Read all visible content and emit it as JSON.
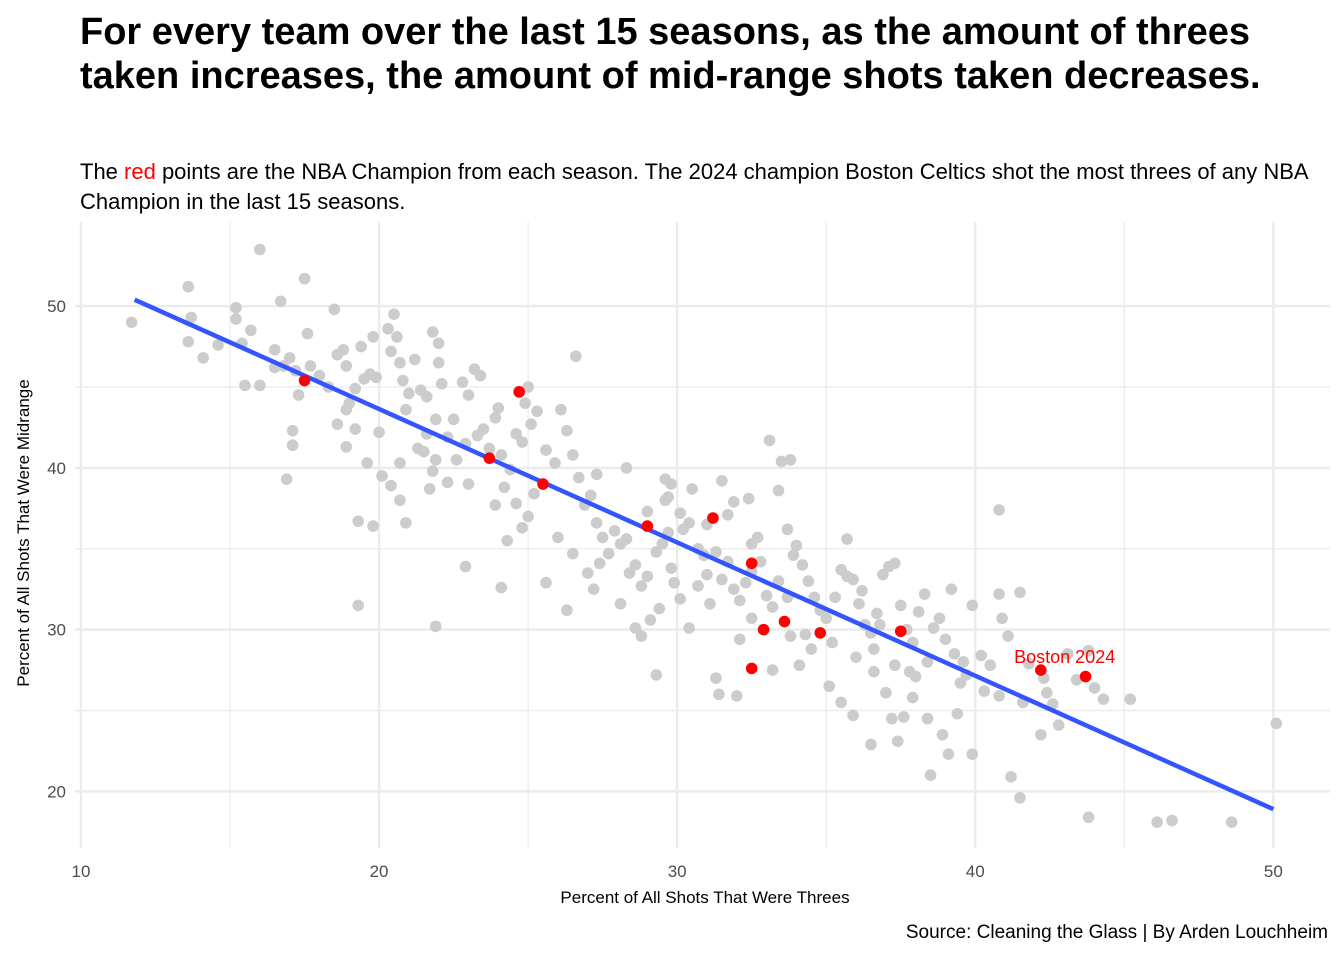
{
  "title": "For every team over the last 15 seasons, as the amount of threes taken increases, the amount of mid-range shots taken decreases.",
  "subtitle": {
    "before": "The ",
    "highlight": "red",
    "after": " points are the NBA Champion from each season. The 2024 champion Boston Celtics shot the most threes of any NBA Champion in the last 15 seasons."
  },
  "caption": "Source: Cleaning the Glass | By Arden Louchheim",
  "chart_data": {
    "type": "scatter",
    "title": "For every team over the last 15 seasons, as the amount of threes taken increases, the amount of mid-range shots taken decreases.",
    "xlabel": "Percent of All Shots That Were Threes",
    "ylabel": "Percent of All Shots That Were Midrange",
    "xlim": [
      9.8,
      51.9
    ],
    "ylim": [
      16.5,
      55.2
    ],
    "xticks": [
      10,
      20,
      30,
      40,
      50
    ],
    "yticks": [
      20,
      30,
      40,
      50
    ],
    "grid": true,
    "colors": {
      "teams": "#cccccc",
      "champions": "#ff0000",
      "trend": "#3355ff",
      "grid": "#ebebeb"
    },
    "trend_line": {
      "x": [
        11.8,
        50.0
      ],
      "y": [
        50.4,
        18.9
      ]
    },
    "annotation": {
      "label": "Boston 2024",
      "x": 43.0,
      "y": 28.3,
      "color": "#ff0000"
    },
    "series": [
      {
        "name": "teams",
        "color": "#cccccc",
        "points": [
          [
            11.7,
            49.0
          ],
          [
            13.6,
            51.2
          ],
          [
            13.6,
            47.8
          ],
          [
            13.7,
            49.3
          ],
          [
            14.1,
            46.8
          ],
          [
            14.6,
            47.6
          ],
          [
            15.2,
            49.9
          ],
          [
            15.2,
            49.2
          ],
          [
            15.4,
            47.7
          ],
          [
            15.5,
            45.1
          ],
          [
            15.7,
            48.5
          ],
          [
            16.0,
            53.5
          ],
          [
            16.0,
            45.1
          ],
          [
            16.5,
            47.3
          ],
          [
            16.7,
            50.3
          ],
          [
            16.8,
            46.3
          ],
          [
            17.0,
            46.8
          ],
          [
            17.2,
            46.0
          ],
          [
            17.5,
            51.7
          ],
          [
            17.6,
            48.3
          ],
          [
            17.7,
            46.3
          ],
          [
            17.1,
            42.3
          ],
          [
            17.1,
            41.4
          ],
          [
            16.9,
            39.3
          ],
          [
            18.0,
            45.7
          ],
          [
            18.3,
            45.0
          ],
          [
            18.5,
            49.8
          ],
          [
            18.6,
            47.0
          ],
          [
            18.8,
            47.3
          ],
          [
            18.9,
            46.3
          ],
          [
            19.0,
            44.0
          ],
          [
            18.6,
            42.7
          ],
          [
            18.9,
            41.3
          ],
          [
            19.2,
            44.9
          ],
          [
            19.4,
            47.5
          ],
          [
            19.5,
            45.5
          ],
          [
            19.7,
            45.8
          ],
          [
            19.8,
            48.1
          ],
          [
            19.9,
            45.6
          ],
          [
            20.0,
            42.2
          ],
          [
            19.6,
            40.3
          ],
          [
            20.3,
            48.6
          ],
          [
            20.4,
            47.2
          ],
          [
            20.5,
            49.5
          ],
          [
            20.6,
            48.1
          ],
          [
            20.7,
            46.5
          ],
          [
            20.8,
            45.4
          ],
          [
            20.9,
            43.6
          ],
          [
            21.0,
            44.6
          ],
          [
            21.2,
            46.7
          ],
          [
            21.4,
            44.8
          ],
          [
            21.6,
            44.4
          ],
          [
            21.8,
            48.4
          ],
          [
            22.0,
            47.7
          ],
          [
            22.0,
            46.5
          ],
          [
            22.1,
            45.2
          ],
          [
            21.9,
            43.0
          ],
          [
            21.6,
            42.1
          ],
          [
            21.5,
            41.0
          ],
          [
            21.9,
            40.5
          ],
          [
            21.8,
            39.8
          ],
          [
            21.7,
            38.7
          ],
          [
            20.7,
            38.0
          ],
          [
            20.4,
            38.9
          ],
          [
            20.9,
            36.6
          ],
          [
            19.8,
            36.4
          ],
          [
            19.3,
            36.7
          ],
          [
            19.3,
            31.5
          ],
          [
            21.9,
            30.2
          ],
          [
            22.5,
            43.0
          ],
          [
            22.6,
            40.5
          ],
          [
            22.8,
            45.3
          ],
          [
            23.0,
            44.5
          ],
          [
            23.2,
            46.1
          ],
          [
            23.4,
            45.7
          ],
          [
            23.5,
            42.4
          ],
          [
            23.7,
            41.2
          ],
          [
            23.9,
            43.1
          ],
          [
            24.1,
            40.8
          ],
          [
            24.4,
            39.9
          ],
          [
            24.6,
            42.1
          ],
          [
            24.8,
            41.6
          ],
          [
            24.9,
            44.0
          ],
          [
            25.1,
            42.7
          ],
          [
            25.3,
            43.5
          ],
          [
            25.0,
            45.0
          ],
          [
            24.2,
            38.8
          ],
          [
            24.6,
            37.8
          ],
          [
            25.0,
            37.0
          ],
          [
            25.2,
            38.4
          ],
          [
            25.6,
            41.1
          ],
          [
            25.9,
            40.3
          ],
          [
            26.1,
            43.6
          ],
          [
            26.3,
            42.3
          ],
          [
            26.5,
            40.8
          ],
          [
            26.7,
            39.4
          ],
          [
            26.6,
            46.9
          ],
          [
            26.9,
            37.7
          ],
          [
            27.1,
            38.3
          ],
          [
            27.3,
            36.6
          ],
          [
            27.5,
            35.7
          ],
          [
            27.7,
            34.7
          ],
          [
            27.4,
            34.1
          ],
          [
            27.9,
            36.1
          ],
          [
            28.1,
            35.3
          ],
          [
            28.3,
            35.6
          ],
          [
            28.4,
            33.5
          ],
          [
            28.6,
            34.0
          ],
          [
            28.8,
            32.7
          ],
          [
            29.0,
            33.3
          ],
          [
            29.3,
            34.8
          ],
          [
            29.5,
            35.3
          ],
          [
            29.7,
            36.0
          ],
          [
            29.8,
            33.8
          ],
          [
            29.9,
            32.9
          ],
          [
            30.1,
            31.9
          ],
          [
            29.6,
            39.3
          ],
          [
            29.8,
            39.0
          ],
          [
            29.6,
            38.0
          ],
          [
            29.0,
            37.3
          ],
          [
            30.1,
            37.2
          ],
          [
            30.2,
            36.2
          ],
          [
            30.4,
            36.6
          ],
          [
            30.7,
            35.0
          ],
          [
            30.9,
            34.6
          ],
          [
            31.0,
            33.4
          ],
          [
            31.3,
            34.8
          ],
          [
            31.5,
            33.1
          ],
          [
            31.7,
            34.2
          ],
          [
            31.9,
            32.5
          ],
          [
            32.1,
            31.8
          ],
          [
            32.3,
            32.9
          ],
          [
            32.5,
            35.3
          ],
          [
            32.7,
            35.7
          ],
          [
            32.8,
            34.2
          ],
          [
            33.0,
            32.1
          ],
          [
            33.2,
            31.4
          ],
          [
            33.4,
            33.0
          ],
          [
            33.1,
            41.7
          ],
          [
            33.5,
            40.4
          ],
          [
            33.8,
            40.5
          ],
          [
            33.4,
            38.6
          ],
          [
            33.7,
            36.2
          ],
          [
            34.0,
            35.2
          ],
          [
            34.2,
            34.0
          ],
          [
            34.4,
            33.0
          ],
          [
            34.6,
            32.0
          ],
          [
            34.8,
            31.2
          ],
          [
            35.0,
            30.7
          ],
          [
            35.3,
            32.0
          ],
          [
            35.5,
            33.7
          ],
          [
            35.7,
            35.6
          ],
          [
            35.9,
            33.1
          ],
          [
            36.1,
            31.6
          ],
          [
            36.3,
            30.3
          ],
          [
            36.5,
            29.8
          ],
          [
            36.7,
            31.0
          ],
          [
            36.9,
            33.4
          ],
          [
            37.1,
            33.9
          ],
          [
            37.3,
            34.1
          ],
          [
            37.5,
            31.5
          ],
          [
            37.7,
            30.0
          ],
          [
            37.9,
            29.2
          ],
          [
            38.1,
            31.1
          ],
          [
            38.3,
            32.2
          ],
          [
            38.6,
            30.1
          ],
          [
            38.8,
            30.7
          ],
          [
            39.0,
            29.4
          ],
          [
            39.3,
            28.5
          ],
          [
            39.6,
            28.0
          ],
          [
            39.2,
            32.5
          ],
          [
            39.9,
            31.5
          ],
          [
            40.2,
            28.4
          ],
          [
            40.5,
            27.8
          ],
          [
            40.8,
            32.2
          ],
          [
            40.9,
            30.7
          ],
          [
            41.1,
            29.6
          ],
          [
            40.8,
            37.4
          ],
          [
            41.5,
            32.3
          ],
          [
            42.3,
            27.0
          ],
          [
            42.8,
            24.1
          ],
          [
            43.1,
            28.5
          ],
          [
            43.8,
            28.7
          ],
          [
            44.0,
            26.4
          ],
          [
            44.3,
            25.7
          ],
          [
            45.2,
            25.7
          ],
          [
            41.2,
            20.9
          ],
          [
            41.5,
            19.6
          ],
          [
            42.2,
            23.5
          ],
          [
            43.8,
            18.4
          ],
          [
            46.1,
            18.1
          ],
          [
            46.6,
            18.2
          ],
          [
            48.6,
            18.1
          ],
          [
            50.1,
            24.2
          ],
          [
            31.4,
            26.0
          ],
          [
            32.0,
            25.9
          ],
          [
            31.3,
            27.0
          ],
          [
            32.1,
            29.4
          ],
          [
            33.2,
            27.5
          ],
          [
            33.8,
            29.6
          ],
          [
            34.1,
            27.8
          ],
          [
            34.5,
            28.8
          ],
          [
            35.1,
            26.5
          ],
          [
            35.5,
            25.5
          ],
          [
            35.9,
            24.7
          ],
          [
            36.6,
            27.4
          ],
          [
            37.0,
            26.1
          ],
          [
            37.2,
            24.5
          ],
          [
            37.6,
            24.6
          ],
          [
            37.9,
            25.8
          ],
          [
            38.4,
            24.5
          ],
          [
            38.9,
            23.5
          ],
          [
            39.1,
            22.3
          ],
          [
            39.4,
            24.8
          ],
          [
            39.9,
            22.3
          ],
          [
            38.5,
            21.0
          ],
          [
            36.5,
            22.9
          ],
          [
            37.4,
            23.1
          ],
          [
            31.5,
            39.2
          ],
          [
            31.9,
            37.9
          ],
          [
            32.4,
            38.1
          ],
          [
            31.0,
            36.5
          ],
          [
            30.4,
            30.1
          ],
          [
            29.4,
            31.3
          ],
          [
            29.1,
            30.6
          ],
          [
            28.8,
            29.6
          ],
          [
            28.1,
            31.6
          ],
          [
            27.2,
            32.5
          ],
          [
            26.3,
            31.2
          ],
          [
            25.6,
            32.9
          ],
          [
            24.1,
            32.6
          ],
          [
            22.9,
            33.9
          ],
          [
            26.0,
            35.7
          ],
          [
            26.5,
            34.7
          ],
          [
            27.0,
            33.5
          ],
          [
            24.3,
            35.5
          ],
          [
            24.8,
            36.3
          ],
          [
            23.9,
            37.7
          ],
          [
            23.0,
            39.0
          ],
          [
            22.3,
            39.1
          ],
          [
            28.6,
            30.1
          ],
          [
            29.3,
            27.2
          ],
          [
            30.7,
            32.7
          ],
          [
            31.1,
            31.6
          ],
          [
            32.5,
            30.7
          ],
          [
            33.7,
            32.0
          ],
          [
            34.3,
            29.7
          ],
          [
            35.2,
            29.2
          ],
          [
            36.0,
            28.3
          ],
          [
            36.6,
            28.8
          ],
          [
            37.3,
            27.8
          ],
          [
            37.8,
            27.4
          ],
          [
            38.4,
            28.0
          ],
          [
            39.7,
            27.2
          ],
          [
            40.3,
            26.2
          ],
          [
            40.8,
            25.9
          ],
          [
            41.6,
            25.5
          ],
          [
            42.4,
            26.1
          ],
          [
            43.4,
            26.9
          ],
          [
            21.3,
            41.2
          ],
          [
            20.7,
            40.3
          ],
          [
            20.1,
            39.5
          ],
          [
            19.2,
            42.4
          ],
          [
            18.9,
            43.6
          ],
          [
            17.3,
            44.5
          ],
          [
            16.5,
            46.2
          ],
          [
            22.3,
            41.9
          ],
          [
            23.3,
            42.0
          ],
          [
            24.0,
            43.7
          ],
          [
            22.9,
            41.5
          ],
          [
            27.3,
            39.6
          ],
          [
            28.3,
            40.0
          ],
          [
            29.7,
            38.2
          ],
          [
            30.5,
            38.7
          ],
          [
            31.7,
            37.1
          ],
          [
            32.5,
            33.6
          ],
          [
            33.9,
            34.6
          ],
          [
            35.7,
            33.3
          ],
          [
            36.2,
            32.4
          ],
          [
            36.8,
            30.3
          ],
          [
            38.0,
            27.1
          ],
          [
            39.5,
            26.7
          ],
          [
            41.8,
            27.9
          ],
          [
            42.6,
            25.4
          ]
        ]
      },
      {
        "name": "champions",
        "color": "#ff0000",
        "points": [
          [
            17.5,
            45.4
          ],
          [
            23.7,
            40.6
          ],
          [
            24.7,
            44.7
          ],
          [
            25.5,
            39.0
          ],
          [
            29.0,
            36.4
          ],
          [
            31.2,
            36.9
          ],
          [
            32.5,
            34.1
          ],
          [
            32.5,
            27.6
          ],
          [
            32.9,
            30.0
          ],
          [
            33.6,
            30.5
          ],
          [
            34.8,
            29.8
          ],
          [
            37.5,
            29.9
          ],
          [
            42.2,
            27.5
          ],
          [
            43.7,
            27.1
          ]
        ]
      }
    ]
  }
}
